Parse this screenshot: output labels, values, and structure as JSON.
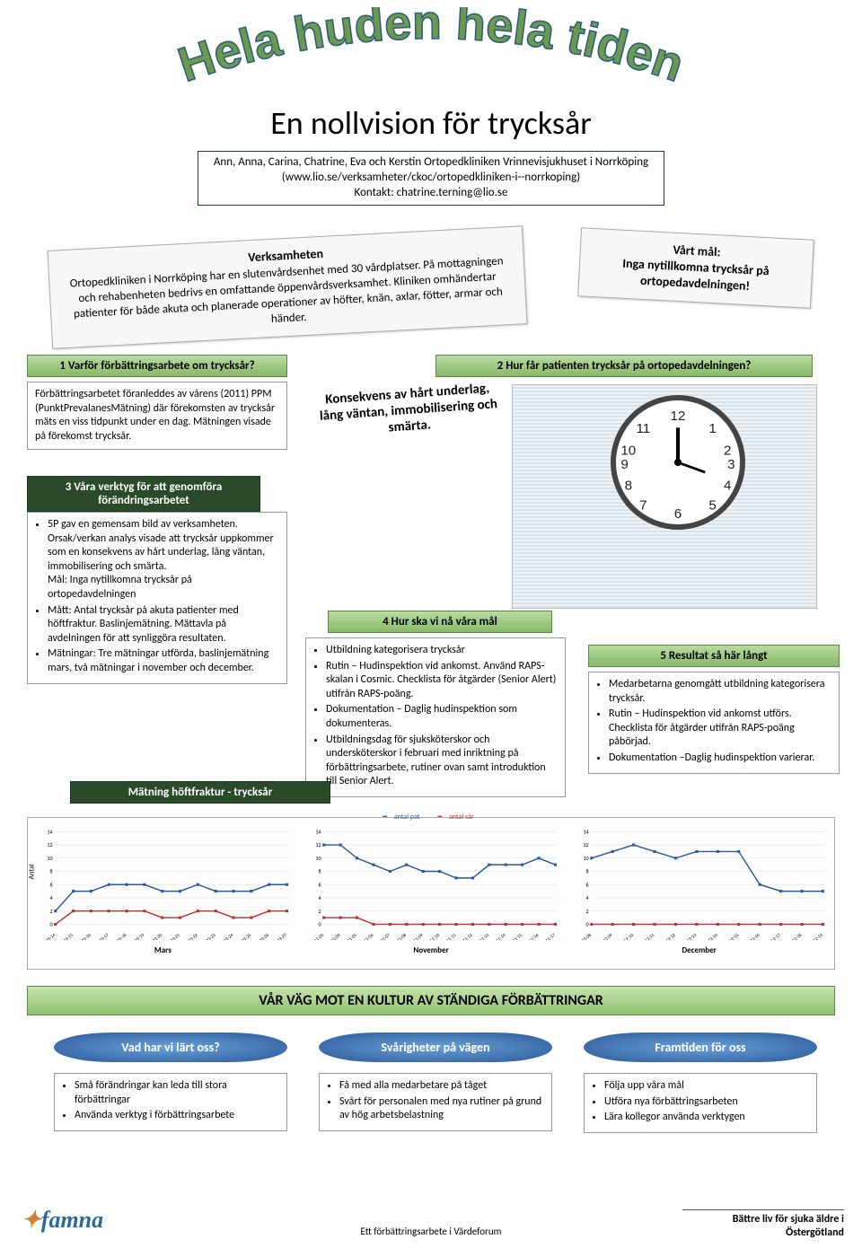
{
  "colors": {
    "arc_fill": "#6a9a4a",
    "arc_stroke": "#2a5a8a",
    "header_grad_top": "#b8dca0",
    "header_grad_bottom": "#88b868",
    "dark_header": "#2a4a2a",
    "pill_outer": "#2a5a9a",
    "pill_inner": "#6aa0d8",
    "series_pat": "#2a5a9a",
    "series_sar": "#c03030"
  },
  "arc_title": "Hela huden hela tiden",
  "subtitle": "En nollvision för trycksår",
  "author_box": "Ann, Anna, Carina, Chatrine, Eva och Kerstin Ortopedkliniken Vrinnevisjukhuset i Norrköping (www.lio.se/verksamheter/ckoc/ortopedkliniken-i--norrkoping)\nKontakt: chatrine.terning@lio.se",
  "verksamheten": {
    "title": "Verksamheten",
    "body": "Ortopedkliniken i Norrköping har en slutenvårdsenhet med 30 vårdplatser. På mottagningen och rehabenheten bedrivs en omfattande öppenvårdsverksamhet. Kliniken omhändertar patienter för både akuta och planerade operationer av höfter, knän, axlar, fötter, armar och händer."
  },
  "goal": "Vårt mål:\nInga nytillkomna trycksår på ortopedavdelningen!",
  "sec1": {
    "title": "1 Varför förbättringsarbete om trycksår?",
    "body": "Förbättringsarbetet föranleddes av vårens (2011) PPM (PunktPrevalanesMätning) där förekomsten av trycksår mäts en viss tidpunkt under en dag. Mätningen visade på förekomst trycksår."
  },
  "sec2": {
    "title": "2 Hur får patienten trycksår på ortopedavdelningen?"
  },
  "konsekvens": "Konsekvens av hårt underlag, lång väntan, immobilisering och smärta.",
  "sec3": {
    "title": "3 Våra verktyg för att genomföra förändringsarbetet",
    "items": [
      "5P gav en gemensam bild av verksamheten.\nOrsak/verkan analys visade att trycksår uppkommer som en konsekvens av hårt underlag, lång väntan, immobilisering och smärta.\nMål: Inga nytillkomna trycksår på ortopedavdelningen",
      "Mått: Antal trycksår på akuta patienter med höftfraktur. Baslinjemätning. Mättavla på avdelningen för att synliggöra resultaten.",
      "Mätningar: Tre mätningar utförda, baslinjemätning mars, två mätningar i november och december."
    ]
  },
  "sec4": {
    "title": "4 Hur ska vi nå våra mål",
    "items": [
      "Utbildning kategorisera trycksår",
      "Rutin – Hudinspektion vid ankomst. Använd RAPS-skalan i Cosmic. Checklista för åtgärder (Senior Alert) utifrån RAPS-poäng.",
      "Dokumentation – Daglig hudinspektion som dokumenteras.",
      "Utbildningsdag för sjuksköterskor och undersköterskor i februari med inriktning på förbättringsarbete, rutiner ovan samt introduktion till Senior Alert."
    ]
  },
  "sec5": {
    "title": "5 Resultat så här långt",
    "items": [
      "Medarbetarna genomgått utbildning kategorisera trycksår.",
      "Rutin – Hudinspektion vid ankomst utförs. Checklista för åtgärder utifrån RAPS-poäng påbörjad.",
      "Dokumentation –Daglig hudinspektion varierar."
    ]
  },
  "chart_title": "Mätning höftfraktur - trycksår",
  "legend": {
    "pat": "antal pat",
    "sar": "antal sår"
  },
  "y_axis_label": "Antal",
  "charts": {
    "y_max": 14,
    "y_ticks": [
      0,
      2,
      4,
      6,
      8,
      10,
      12,
      14
    ],
    "panels": [
      {
        "label": "Mars",
        "x_labels": [
          "2011-03-14",
          "2011-03-15",
          "2011-03-16",
          "2011-03-17",
          "2011-03-18",
          "2011-03-19",
          "2011-03-20",
          "2011-03-21",
          "2011-03-22",
          "2011-03-23",
          "2011-03-24",
          "2011-03-25",
          "2011-03-26",
          "2011-03-27"
        ],
        "pat": [
          2,
          5,
          5,
          6,
          6,
          6,
          5,
          5,
          6,
          5,
          5,
          5,
          6,
          6
        ],
        "sar": [
          0,
          2,
          2,
          2,
          2,
          2,
          1,
          1,
          2,
          2,
          1,
          1,
          2,
          2
        ]
      },
      {
        "label": "November",
        "x_labels": [
          "2011-11-03",
          "2011-11-04",
          "2011-11-05",
          "2011-11-06",
          "2011-11-07",
          "2011-11-08",
          "2011-11-09",
          "2011-11-10",
          "2011-11-11",
          "2011-11-12",
          "2011-11-13",
          "2011-11-14",
          "2011-11-15",
          "2011-11-16",
          "2011-11-17"
        ],
        "pat": [
          12,
          12,
          10,
          9,
          8,
          9,
          8,
          8,
          7,
          7,
          9,
          9,
          9,
          10,
          9
        ],
        "sar": [
          1,
          1,
          1,
          0,
          0,
          0,
          0,
          0,
          0,
          0,
          0,
          0,
          0,
          0,
          0
        ]
      },
      {
        "label": "December",
        "x_labels": [
          "2011-12-08",
          "2011-12-09",
          "2011-12-10",
          "2011-12-11",
          "2011-12-12",
          "2011-12-13",
          "2011-12-14",
          "2011-12-15",
          "2011-12-16",
          "2011-12-17",
          "2011-12-18",
          "2011-12-19"
        ],
        "pat": [
          10,
          11,
          12,
          11,
          10,
          11,
          11,
          11,
          6,
          5,
          5,
          5
        ],
        "sar": [
          0,
          0,
          0,
          0,
          0,
          0,
          0,
          0,
          0,
          0,
          0,
          0
        ]
      }
    ]
  },
  "culture_banner": "VÅR VÄG MOT EN KULTUR AV STÄNDIGA FÖRBÄTTRINGAR",
  "pills": [
    "Vad har vi lärt oss?",
    "Svårigheter på vägen",
    "Framtiden för oss"
  ],
  "learn_boxes": [
    [
      "Små förändringar kan leda till stora förbättringar",
      "Använda verktyg i förbättringsarbete"
    ],
    [
      "Få med alla medarbetare på tåget",
      "Svårt för personalen med nya rutiner på grund av hög arbetsbelastning"
    ],
    [
      "Följa upp våra mål",
      "Utföra nya förbättringsarbeten",
      "Lära kollegor använda verktygen"
    ]
  ],
  "footer_center": "Ett förbättringsarbete i Värdeforum",
  "footer_right": "Bättre liv för sjuka äldre i\nÖstergötland",
  "logo": "famna"
}
